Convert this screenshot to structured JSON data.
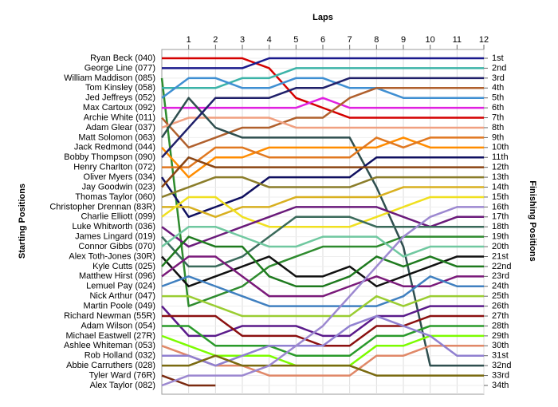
{
  "chart_data": {
    "type": "lap_chart",
    "xlabel": "Laps",
    "ylabel": "Starting Positions",
    "y2label": "Finishing Positions",
    "x": [
      0,
      1,
      2,
      3,
      4,
      5,
      6,
      7,
      8,
      9,
      10,
      11,
      12
    ],
    "xlim": [
      0,
      12
    ],
    "xticks": [
      1,
      2,
      3,
      4,
      5,
      6,
      7,
      8,
      9,
      10,
      11,
      12
    ],
    "ylim": [
      1,
      34
    ],
    "y2ticks": [
      {
        "value": 1,
        "label": "1st"
      },
      {
        "value": 2,
        "label": "2nd"
      },
      {
        "value": 3,
        "label": "3rd"
      },
      {
        "value": 4,
        "label": "4th"
      },
      {
        "value": 5,
        "label": "5th"
      },
      {
        "value": 6,
        "label": "6th"
      },
      {
        "value": 7,
        "label": "7th"
      },
      {
        "value": 8,
        "label": "8th"
      },
      {
        "value": 9,
        "label": "9th"
      },
      {
        "value": 10,
        "label": "10th"
      },
      {
        "value": 11,
        "label": "11th"
      },
      {
        "value": 12,
        "label": "12th"
      },
      {
        "value": 13,
        "label": "13th"
      },
      {
        "value": 14,
        "label": "14th"
      },
      {
        "value": 15,
        "label": "15th"
      },
      {
        "value": 16,
        "label": "16th"
      },
      {
        "value": 17,
        "label": "17th"
      },
      {
        "value": 18,
        "label": "18th"
      },
      {
        "value": 19,
        "label": "19th"
      },
      {
        "value": 20,
        "label": "20th"
      },
      {
        "value": 21,
        "label": "21st"
      },
      {
        "value": 22,
        "label": "22nd"
      },
      {
        "value": 23,
        "label": "23rd"
      },
      {
        "value": 24,
        "label": "24th"
      },
      {
        "value": 25,
        "label": "25th"
      },
      {
        "value": 26,
        "label": "26th"
      },
      {
        "value": 27,
        "label": "27th"
      },
      {
        "value": 28,
        "label": "28th"
      },
      {
        "value": 29,
        "label": "29th"
      },
      {
        "value": 30,
        "label": "30th"
      },
      {
        "value": 31,
        "label": "31st"
      },
      {
        "value": 32,
        "label": "32nd"
      },
      {
        "value": 33,
        "label": "33rd"
      },
      {
        "value": 34,
        "label": "34th"
      }
    ],
    "grid": true,
    "series": [
      {
        "name": "Ryan Beck (040)",
        "color": "#d40000",
        "values": [
          1,
          1,
          1,
          1,
          2,
          5,
          6,
          7,
          7,
          7,
          7,
          7,
          7
        ]
      },
      {
        "name": "George Line (077)",
        "color": "#1a1a8c",
        "values": [
          2,
          2,
          2,
          2,
          1,
          1,
          1,
          1,
          1,
          1,
          1,
          1,
          1
        ]
      },
      {
        "name": "William Maddison (085)",
        "color": "#2e8b2e",
        "values": [
          3,
          26,
          25,
          24,
          22,
          21,
          20,
          20,
          20,
          19,
          19,
          19,
          19
        ]
      },
      {
        "name": "Tom Kinsley (058)",
        "color": "#3cb3a8",
        "values": [
          4,
          4,
          4,
          3,
          3,
          2,
          2,
          2,
          2,
          2,
          2,
          2,
          2
        ]
      },
      {
        "name": "Jed Jeffreys (052)",
        "color": "#3f8fd2",
        "values": [
          5,
          3,
          3,
          4,
          4,
          3,
          3,
          4,
          4,
          5,
          5,
          5,
          5
        ]
      },
      {
        "name": "Max Cartoux (092)",
        "color": "#e020e0",
        "values": [
          6,
          6,
          6,
          6,
          6,
          6,
          5,
          6,
          6,
          6,
          6,
          6,
          6
        ]
      },
      {
        "name": "Archie White (011)",
        "color": "#b0602d",
        "values": [
          7,
          10,
          9,
          8,
          8,
          7,
          7,
          5,
          4,
          4,
          4,
          4,
          4
        ]
      },
      {
        "name": "Adam Glear (037)",
        "color": "#f0a080",
        "values": [
          8,
          7,
          7,
          7,
          7,
          8,
          8,
          8,
          8,
          8,
          8,
          8,
          8
        ]
      },
      {
        "name": "Matt Solomon (063)",
        "color": "#2f4f4f",
        "values": [
          9,
          5,
          8,
          9,
          9,
          9,
          9,
          9,
          14,
          20,
          32,
          32,
          32
        ]
      },
      {
        "name": "Jack Redmond (044)",
        "color": "#ff8c00",
        "values": [
          10,
          13,
          11,
          11,
          10,
          10,
          10,
          10,
          10,
          9,
          10,
          10,
          10
        ]
      },
      {
        "name": "Bobby Thompson (090)",
        "color": "#20206a",
        "values": [
          11,
          8,
          5,
          5,
          5,
          4,
          4,
          3,
          3,
          3,
          3,
          3,
          3
        ]
      },
      {
        "name": "Henry Charlton (072)",
        "color": "#e07820",
        "values": [
          12,
          12,
          10,
          10,
          11,
          11,
          11,
          11,
          9,
          10,
          9,
          9,
          9
        ]
      },
      {
        "name": "Oliver Myers (034)",
        "color": "#101060",
        "values": [
          13,
          17,
          16,
          15,
          13,
          13,
          13,
          13,
          11,
          11,
          11,
          11,
          11
        ]
      },
      {
        "name": "Jay Goodwin (023)",
        "color": "#8b4513",
        "values": [
          14,
          11,
          12,
          12,
          12,
          12,
          12,
          12,
          12,
          12,
          12,
          12,
          12
        ]
      },
      {
        "name": "Thomas Taylor (060)",
        "color": "#8b7d2a",
        "values": [
          15,
          14,
          13,
          13,
          14,
          14,
          14,
          14,
          13,
          13,
          13,
          13,
          13
        ]
      },
      {
        "name": "Christopher Drennan (83R)",
        "color": "#d8b020",
        "values": [
          16,
          16,
          17,
          16,
          16,
          15,
          15,
          15,
          15,
          14,
          14,
          14,
          14
        ]
      },
      {
        "name": "Charlie Elliott (099)",
        "color": "#f0e020",
        "values": [
          17,
          15,
          15,
          17,
          18,
          18,
          18,
          18,
          17,
          16,
          15,
          15,
          15
        ]
      },
      {
        "name": "Luke Whitworth (036)",
        "color": "#6a1a7a",
        "values": [
          18,
          20,
          19,
          18,
          17,
          16,
          16,
          16,
          16,
          17,
          18,
          17,
          17
        ]
      },
      {
        "name": "James Lingard (019)",
        "color": "#3a6a5a",
        "values": [
          19,
          22,
          22,
          21,
          19,
          17,
          17,
          17,
          18,
          18,
          18,
          18,
          18
        ]
      },
      {
        "name": "Connor Gibbs (070)",
        "color": "#70c8a0",
        "values": [
          20,
          18,
          18,
          19,
          20,
          20,
          19,
          19,
          19,
          21,
          20,
          20,
          20
        ]
      },
      {
        "name": "Alex Toth-Jones (30R)",
        "color": "#111111",
        "values": [
          21,
          24,
          23,
          22,
          21,
          23,
          23,
          22,
          24,
          23,
          22,
          21,
          21
        ]
      },
      {
        "name": "Kyle Cutts (025)",
        "color": "#1e7a1e",
        "values": [
          22,
          19,
          20,
          20,
          23,
          24,
          24,
          23,
          21,
          22,
          21,
          22,
          22
        ]
      },
      {
        "name": "Matthew Hirst (096)",
        "color": "#7a1a7a",
        "values": [
          23,
          21,
          21,
          23,
          25,
          25,
          25,
          24,
          23,
          24,
          24,
          23,
          23
        ]
      },
      {
        "name": "Lemuel Pay (024)",
        "color": "#4080c0",
        "values": [
          24,
          23,
          24,
          25,
          26,
          26,
          26,
          26,
          26,
          25,
          23,
          24,
          24
        ]
      },
      {
        "name": "Nick Arthur (047)",
        "color": "#9acd32",
        "values": [
          25,
          25,
          26,
          27,
          27,
          27,
          27,
          27,
          25,
          26,
          25,
          25,
          25
        ]
      },
      {
        "name": "Martin Poole (049)",
        "color": "#5a1a8a",
        "values": [
          26,
          29,
          29,
          28,
          28,
          28,
          29,
          29,
          27,
          27,
          26,
          26,
          26
        ]
      },
      {
        "name": "Richard Newman (55R)",
        "color": "#8b1010",
        "values": [
          27,
          27,
          27,
          29,
          29,
          29,
          30,
          30,
          28,
          28,
          27,
          27,
          27
        ]
      },
      {
        "name": "Adam Wilson (054)",
        "color": "#2a9a2a",
        "values": [
          28,
          28,
          30,
          30,
          30,
          31,
          31,
          31,
          29,
          29,
          28,
          28,
          28
        ]
      },
      {
        "name": "Michael Eastwell (27R)",
        "color": "#7cfc00",
        "values": [
          29,
          30,
          31,
          31,
          31,
          32,
          32,
          32,
          30,
          30,
          29,
          29,
          29
        ]
      },
      {
        "name": "Ashlee Whiteman (053)",
        "color": "#e08868",
        "values": [
          30,
          31,
          32,
          32,
          33,
          33,
          33,
          33,
          31,
          31,
          30,
          30,
          30
        ]
      },
      {
        "name": "Rob Holland (032)",
        "color": "#9080d0",
        "values": [
          31,
          31,
          32,
          31,
          30,
          30,
          30,
          28,
          27,
          28,
          29,
          31,
          31
        ]
      },
      {
        "name": "Abbie Carruthers (028)",
        "color": "#7a6a10",
        "values": [
          32,
          32,
          31,
          32,
          32,
          32,
          32,
          32,
          33,
          33,
          33,
          33,
          33
        ]
      },
      {
        "name": "Tyler Ward (76R)",
        "color": "#7a2a10",
        "values": [
          33,
          34,
          34,
          null,
          null,
          null,
          null,
          null,
          null,
          null,
          null,
          null,
          null
        ]
      },
      {
        "name": "Alex Taylor (082)",
        "color": "#9c88d0",
        "values": [
          34,
          33,
          33,
          33,
          32,
          30,
          28,
          25,
          22,
          19,
          17,
          16,
          16
        ]
      }
    ]
  }
}
